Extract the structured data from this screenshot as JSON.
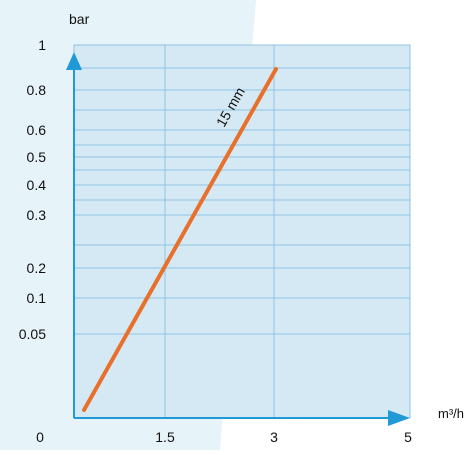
{
  "chart_data": {
    "type": "line",
    "ylabel": "bar",
    "xlabel": "m³/h",
    "x_ticks": [
      "0",
      "1.5",
      "3",
      "5"
    ],
    "y_ticks": [
      "0.05",
      "0.1",
      "0.2",
      "0.3",
      "0.4",
      "0.5",
      "0.6",
      "0.8",
      "1"
    ],
    "x_range": [
      0,
      5
    ],
    "grid": true,
    "series": [
      {
        "name": "15 mm",
        "points": [
          {
            "x": 0.1,
            "y": 0.02
          },
          {
            "x": 3.0,
            "y": 0.9
          }
        ]
      }
    ],
    "colors": {
      "line": "#e8702a",
      "plot_bg": "#d5e9f5",
      "panel_bg": "#e6f3f9",
      "grid": "#8fc3e3",
      "arrow": "#1f9ad6"
    }
  }
}
